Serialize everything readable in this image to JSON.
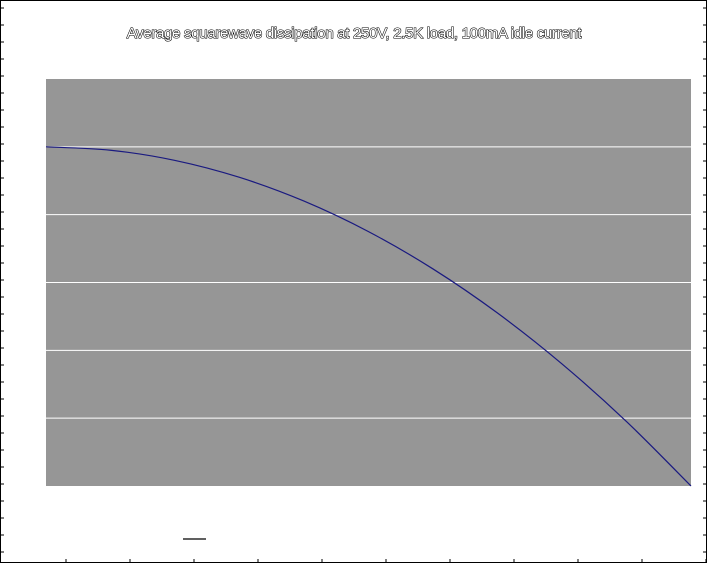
{
  "chart_data": {
    "type": "line",
    "title": "Average squarewave dissipation at 250V, 2.5K load, 100mA idle current",
    "xlabel": "",
    "ylabel": "",
    "x": [
      0,
      0.1,
      0.2,
      0.3,
      0.4,
      0.5,
      0.6,
      0.7,
      0.8,
      0.9,
      1.0
    ],
    "series": [
      {
        "values": [
          5.0,
          4.95,
          4.8,
          4.55,
          4.2,
          3.75,
          3.2,
          2.55,
          1.8,
          0.95,
          0.0
        ]
      }
    ],
    "xlim": [
      0,
      1
    ],
    "ylim": [
      0,
      6
    ],
    "grid": true,
    "legend": "bottom-left",
    "colors": {
      "plot_background": "#969696",
      "gridline": "#ffffff",
      "series_line": "#1a1a80",
      "page_background": "#ffffff",
      "border": "#000000"
    }
  }
}
